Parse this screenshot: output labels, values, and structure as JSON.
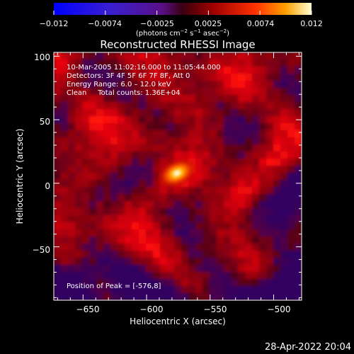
{
  "chart_data": {
    "type": "heatmap",
    "title": "Reconstructed RHESSI Image",
    "xlabel": "Heliocentric X (arcsec)",
    "ylabel": "Heliocentric Y (arcsec)",
    "xlim": [
      -673,
      -478
    ],
    "ylim": [
      -92,
      103
    ],
    "xticks": [
      -650,
      -600,
      -550,
      -500
    ],
    "yticks": [
      -50,
      0,
      50,
      100
    ],
    "xtick_labels": [
      "−650",
      "−600",
      "−550",
      "−500"
    ],
    "ytick_labels": [
      "−50",
      "0",
      "50",
      "100"
    ],
    "colorbar": {
      "min": -0.012,
      "max": 0.012,
      "tick_labels": [
        "−0.012",
        "−0.0074",
        "−0.0025",
        "0.0025",
        "0.0074",
        "0.012"
      ],
      "unit_parts": [
        "(photons cm",
        "−2",
        " s",
        "−1",
        " asec",
        "−2",
        ")"
      ]
    },
    "annotations": [
      "10-Mar-2005 11:02:16.000 to 11:05:44.000",
      "Detectors: 3F 4F 5F 6F 7F 8F, Att 0",
      "Energy Range: 6.0 – 12.0 keV",
      "Clean     Total counts: 1.36E+04"
    ],
    "peak_label": "Position of Peak = [-576,8]",
    "peak": {
      "x": -576,
      "y": 8
    },
    "footer_date": "28-Apr-2022 20:04",
    "grid": false
  }
}
